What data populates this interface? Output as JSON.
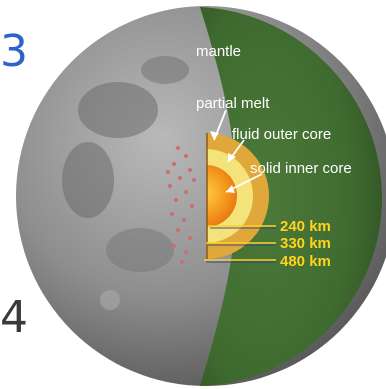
{
  "edge_text": {
    "top": "3",
    "bottom": "4"
  },
  "labels": {
    "mantle": "mantle",
    "partial_melt": "partial melt",
    "fluid_outer_core": "fluid outer core",
    "solid_inner_core": "solid inner core"
  },
  "depths": [
    "240 km",
    "330 km",
    "480 km"
  ],
  "colors": {
    "mantle": "#3f6b30",
    "partial_melt": "#e0a73a",
    "outer_core": "#f4e27a",
    "inner_core": "#f08418",
    "depth_text": "#ffd21e",
    "label_text": "#ffffff"
  }
}
